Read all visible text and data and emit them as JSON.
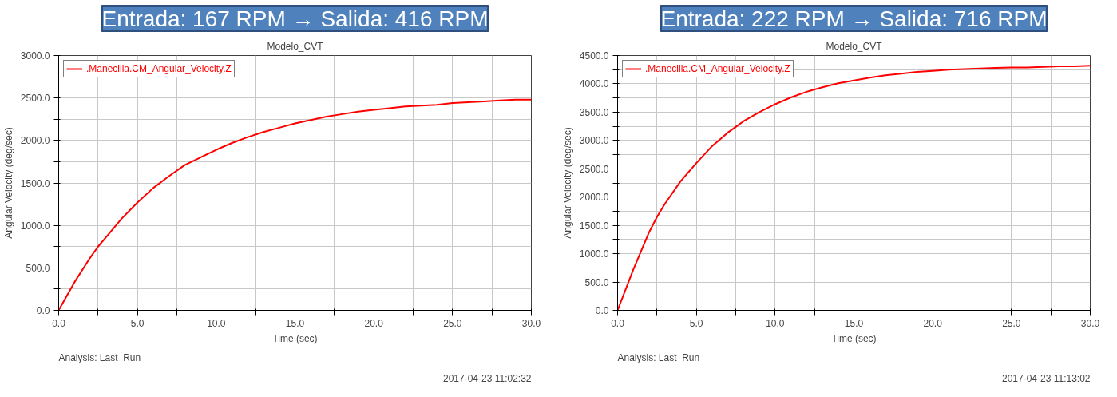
{
  "chart_data": [
    {
      "type": "line",
      "title": "Entrada: 167 RPM → Salida: 416 RPM",
      "subtitle": "Modelo_CVT",
      "xlabel": "Time (sec)",
      "ylabel": "Angular Velocity (deg/sec)",
      "x": [
        0,
        1,
        2,
        2.5,
        3,
        4,
        5,
        6,
        7,
        8,
        9,
        10,
        11,
        12,
        13,
        14,
        15,
        16,
        17,
        18,
        19,
        20,
        21,
        22,
        23,
        24,
        25,
        26,
        27,
        28,
        29,
        30
      ],
      "series": [
        {
          "name": ".Manecilla.CM_Angular_Velocity.Z",
          "color": "#ff0000",
          "values": [
            0,
            330,
            620,
            750,
            860,
            1080,
            1270,
            1440,
            1580,
            1710,
            1800,
            1890,
            1970,
            2040,
            2100,
            2150,
            2200,
            2240,
            2280,
            2310,
            2340,
            2360,
            2380,
            2400,
            2410,
            2420,
            2440,
            2450,
            2460,
            2470,
            2480,
            2480
          ]
        }
      ],
      "xlim": [
        0,
        30
      ],
      "ylim": [
        0,
        3000
      ],
      "xticks": [
        {
          "value": 0,
          "label": "0.0"
        },
        {
          "value": 2.5,
          "label": null
        },
        {
          "value": 5,
          "label": "5.0"
        },
        {
          "value": 7.5,
          "label": null
        },
        {
          "value": 10,
          "label": "10.0"
        },
        {
          "value": 12.5,
          "label": null
        },
        {
          "value": 15,
          "label": "15.0"
        },
        {
          "value": 17.5,
          "label": null
        },
        {
          "value": 20,
          "label": "20.0"
        },
        {
          "value": 22.5,
          "label": null
        },
        {
          "value": 25,
          "label": "25.0"
        },
        {
          "value": 27.5,
          "label": null
        },
        {
          "value": 30,
          "label": "30.0"
        }
      ],
      "yticks": [
        {
          "value": 0,
          "label": "0.0"
        },
        {
          "value": 250,
          "label": null
        },
        {
          "value": 500,
          "label": "500.0"
        },
        {
          "value": 750,
          "label": null
        },
        {
          "value": 1000,
          "label": "1000.0"
        },
        {
          "value": 1250,
          "label": null
        },
        {
          "value": 1500,
          "label": "1500.0"
        },
        {
          "value": 1750,
          "label": null
        },
        {
          "value": 2000,
          "label": "2000.0"
        },
        {
          "value": 2250,
          "label": null
        },
        {
          "value": 2500,
          "label": "2500.0"
        },
        {
          "value": 2750,
          "label": null
        },
        {
          "value": 3000,
          "label": "3000.0"
        }
      ],
      "grid": true,
      "legend": "top left",
      "marker": "none",
      "line_style": "solid",
      "annotations": [
        "Analysis:  Last_Run",
        "2017-04-23 11:02:32"
      ]
    },
    {
      "type": "line",
      "title": "Entrada: 222 RPM → Salida: 716 RPM",
      "subtitle": "Modelo_CVT",
      "xlabel": "Time (sec)",
      "ylabel": "Angular Velocity (deg/sec)",
      "x": [
        0,
        1,
        2,
        2.5,
        3,
        4,
        5,
        6,
        7,
        7.5,
        8,
        9,
        10,
        11,
        12,
        13,
        14,
        15,
        16,
        17,
        18,
        19,
        20,
        21,
        22,
        23,
        24,
        25,
        26,
        27,
        28,
        29,
        30
      ],
      "series": [
        {
          "name": ".Manecilla.CM_Angular_Velocity.Z",
          "color": "#ff0000",
          "values": [
            0,
            720,
            1380,
            1650,
            1880,
            2280,
            2600,
            2900,
            3140,
            3240,
            3340,
            3500,
            3640,
            3760,
            3860,
            3940,
            4010,
            4060,
            4110,
            4150,
            4180,
            4210,
            4230,
            4250,
            4260,
            4270,
            4280,
            4290,
            4290,
            4300,
            4310,
            4310,
            4320
          ]
        }
      ],
      "xlim": [
        0,
        30
      ],
      "ylim": [
        0,
        4500
      ],
      "xticks": [
        {
          "value": 0,
          "label": "0.0"
        },
        {
          "value": 2.5,
          "label": null
        },
        {
          "value": 5,
          "label": "5.0"
        },
        {
          "value": 7.5,
          "label": null
        },
        {
          "value": 10,
          "label": "10.0"
        },
        {
          "value": 12.5,
          "label": null
        },
        {
          "value": 15,
          "label": "15.0"
        },
        {
          "value": 17.5,
          "label": null
        },
        {
          "value": 20,
          "label": "20.0"
        },
        {
          "value": 22.5,
          "label": null
        },
        {
          "value": 25,
          "label": "25.0"
        },
        {
          "value": 27.5,
          "label": null
        },
        {
          "value": 30,
          "label": "30.0"
        }
      ],
      "yticks": [
        {
          "value": 0,
          "label": "0.0"
        },
        {
          "value": 250,
          "label": null
        },
        {
          "value": 500,
          "label": "500.0"
        },
        {
          "value": 750,
          "label": null
        },
        {
          "value": 1000,
          "label": "1000.0"
        },
        {
          "value": 1250,
          "label": null
        },
        {
          "value": 1500,
          "label": "1500.0"
        },
        {
          "value": 1750,
          "label": null
        },
        {
          "value": 2000,
          "label": "2000.0"
        },
        {
          "value": 2250,
          "label": null
        },
        {
          "value": 2500,
          "label": "2500.0"
        },
        {
          "value": 2750,
          "label": null
        },
        {
          "value": 3000,
          "label": "3000.0"
        },
        {
          "value": 3250,
          "label": null
        },
        {
          "value": 3500,
          "label": "3500.0"
        },
        {
          "value": 3750,
          "label": null
        },
        {
          "value": 4000,
          "label": "4000.0"
        },
        {
          "value": 4250,
          "label": null
        },
        {
          "value": 4500,
          "label": "4500.0"
        }
      ],
      "grid": true,
      "legend": "top left",
      "marker": "none",
      "line_style": "solid",
      "annotations": [
        "Analysis:  Last_Run",
        "2017-04-23 11:13:02"
      ]
    }
  ]
}
